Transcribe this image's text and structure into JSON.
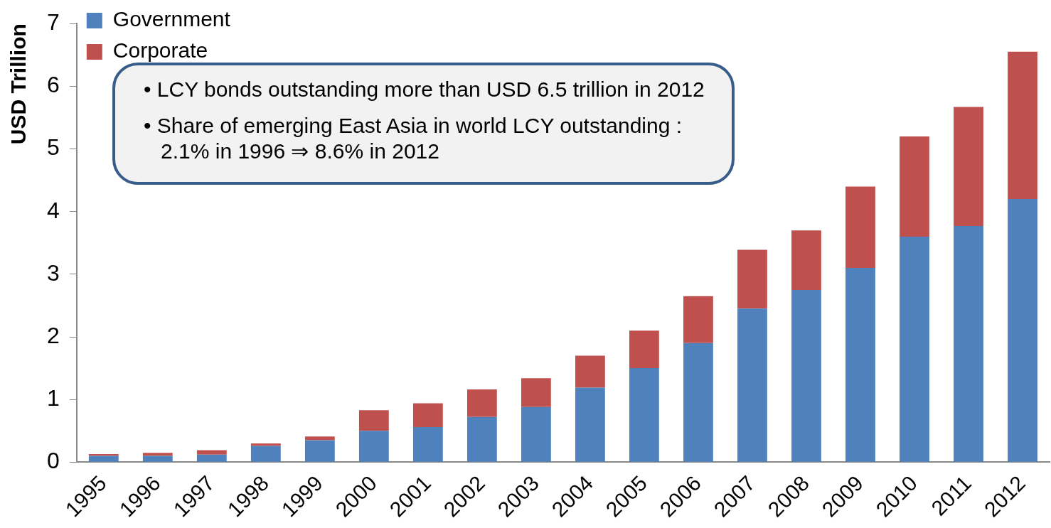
{
  "chart_data": {
    "type": "bar",
    "stacked": true,
    "ylabel": "USD Trillion",
    "categories": [
      "1995",
      "1996",
      "1997",
      "1998",
      "1999",
      "2000",
      "2001",
      "2002",
      "2003",
      "2004",
      "2005",
      "2006",
      "2007",
      "2008",
      "2009",
      "2010",
      "2011",
      "2012"
    ],
    "series": [
      {
        "name": "Government",
        "color": "#4f81bd",
        "values": [
          0.1,
          0.1,
          0.12,
          0.26,
          0.35,
          0.5,
          0.56,
          0.72,
          0.88,
          1.19,
          1.5,
          1.9,
          2.45,
          2.75,
          3.1,
          3.6,
          3.77,
          4.2
        ]
      },
      {
        "name": "Corporate",
        "color": "#c0504d",
        "values": [
          0.03,
          0.05,
          0.07,
          0.04,
          0.06,
          0.33,
          0.38,
          0.44,
          0.46,
          0.51,
          0.6,
          0.75,
          0.94,
          0.95,
          1.3,
          1.6,
          1.9,
          2.35
        ]
      }
    ],
    "ylim": [
      0,
      7
    ],
    "yticks": [
      0,
      1,
      2,
      3,
      4,
      5,
      6,
      7
    ],
    "grid": false,
    "legend": "top left",
    "annotations": [
      "•  LCY bonds outstanding more than USD 6.5 trillion in 2012",
      "•  Share of emerging East Asia in world LCY outstanding : 2.1% in 1996 ⇒ 8.6% in 2012"
    ]
  }
}
